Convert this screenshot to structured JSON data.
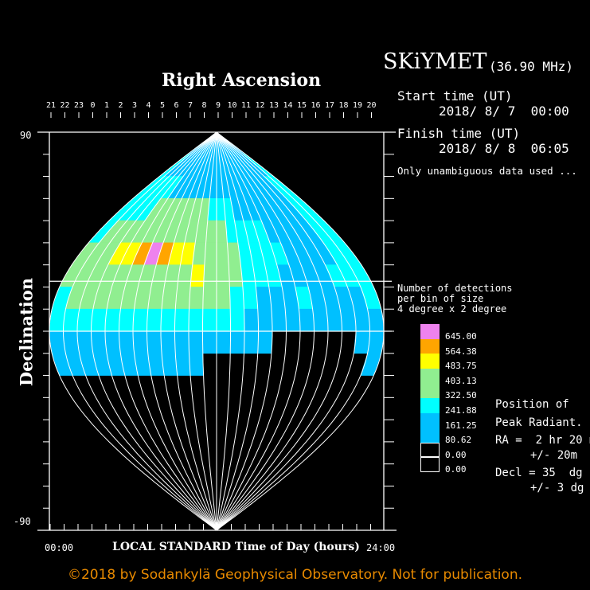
{
  "header": {
    "instrument": "SKiYMET",
    "frequency": "(36.90 MHz)",
    "start_label": "Start time (UT)",
    "start_value": "2018/ 8/ 7  00:00",
    "finish_label": "Finish time (UT)",
    "finish_value": "2018/ 8/ 8  06:05",
    "note": "Only unambiguous data used ..."
  },
  "legend": {
    "title_lines": [
      "Number of detections",
      "per bin of size",
      "4 degree x 2 degree"
    ],
    "boxes": [
      "#ee82ee",
      "#ffa500",
      "#ffff00",
      "#90ee90",
      "#90ee90",
      "#00ffff",
      "#00c0ff",
      "#00c0ff",
      "#000000",
      "#000000"
    ],
    "labels": [
      "645.00",
      "564.38",
      "483.75",
      "403.13",
      "322.50",
      "241.88",
      "161.25",
      "80.62",
      "0.00",
      "0.00"
    ]
  },
  "peak": {
    "lines": [
      "Position of",
      "Peak Radiant.",
      "RA =  2 hr 20 m",
      "+/- 20m",
      "Decl = 35  dg",
      "+/- 3 dg"
    ]
  },
  "footer": {
    "copyright": "©2018 by Sodankylä Geophysical Observatory. Not for publication."
  },
  "chart_data": {
    "type": "heatmap",
    "title": "Right Ascension",
    "ylabel": "Declination",
    "xlabel": "LOCAL STANDARD Time of Day (hours)",
    "x_start_label": "00:00",
    "x_end_label": "24:00",
    "y_tick_top": "90",
    "y_tick_bottom": "-90",
    "ylim": [
      -90,
      90
    ],
    "ra_tick_labels": [
      "21",
      "22",
      "23",
      "0",
      "1",
      "2",
      "3",
      "4",
      "5",
      "6",
      "7",
      "8",
      "9",
      "10",
      "11",
      "12",
      "13",
      "14",
      "15",
      "16",
      "17",
      "18",
      "19",
      "20"
    ],
    "projection": "sinusoidal",
    "center_ra_hours": 8,
    "colatitude_line_dec": 22.6,
    "level_colors": [
      "#000000",
      "#00c0ff",
      "#00ffff",
      "#90ee90",
      "#ffff00",
      "#ffa500",
      "#ee82ee"
    ],
    "level_ranges": [
      "0.00",
      "80.62-241.88",
      "241.88-322.50",
      "322.50-483.75",
      "483.75-564.38",
      "564.38-645.00",
      ">645.00"
    ],
    "grid_dec_centers": [
      85,
      75,
      65,
      55,
      45,
      35,
      25,
      15,
      5,
      -5,
      -15,
      -25,
      -35,
      -45,
      -55,
      -65,
      -75,
      -85
    ],
    "grid_rows": [
      "111111111111111111111111",
      "211111111111111111111112",
      "222221111111111111111122",
      "222233333332221111111122",
      "233333333333322221111122",
      "333445654433332222111122",
      "333333333343332221111222",
      "233333333333322111211112",
      "222222222222221111111111",
      "111111111111111100000011",
      "111111111110000000000001",
      "000000000000000000000000",
      "000000000000000000000000",
      "000000000000000000000000",
      "000000000000000000000000",
      "000000000000000000000000",
      "000000000000000000000000",
      "000000000000000000000000"
    ],
    "peak_radiant": {
      "ra": "2 hr 20 m",
      "ra_err": "20m",
      "dec": 35,
      "dec_err": 3
    }
  }
}
